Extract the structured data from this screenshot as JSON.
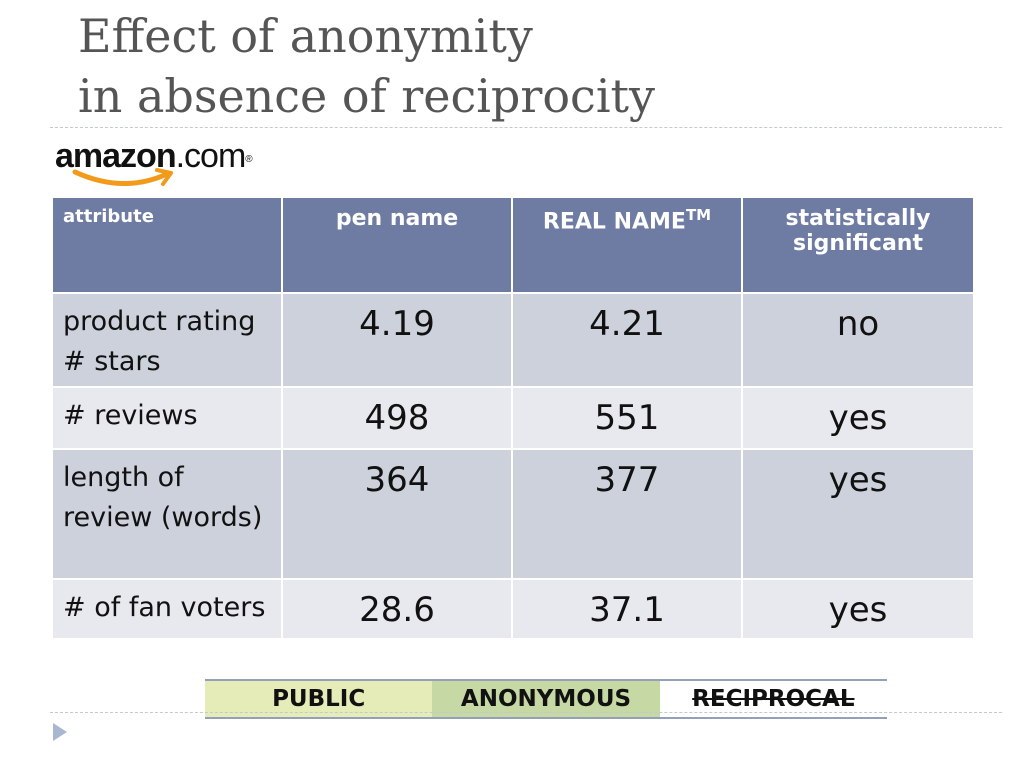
{
  "title": {
    "line1": "Effect of anonymity",
    "line2": "in absence of reciprocity"
  },
  "logo": {
    "brand_bold": "amazon",
    "brand_suffix": ".com",
    "registered": "®",
    "smile_color": "#f29a1a"
  },
  "table": {
    "headers": {
      "attribute": "attribute",
      "pen_name": "pen name",
      "real_name": "REAL NAME",
      "real_name_sup": "TM",
      "significance_line1": "statistically",
      "significance_line2": "significant"
    },
    "rows": [
      {
        "label_line1": "product rating",
        "label_line2": "# stars",
        "pen_name": "4.19",
        "real_name": "4.21",
        "significant": "no"
      },
      {
        "label_line1": "# reviews",
        "label_line2": "",
        "pen_name": "498",
        "real_name": "551",
        "significant": "yes"
      },
      {
        "label_line1": "length of",
        "label_line2": "review (words)",
        "pen_name": "364",
        "real_name": "377",
        "significant": "yes"
      },
      {
        "label_line1": "# of fan voters",
        "label_line2": "",
        "pen_name": "28.6",
        "real_name": "37.1",
        "significant": "yes"
      }
    ]
  },
  "legend": {
    "public": "PUBLIC",
    "anonymous": "ANONYMOUS",
    "reciprocal": "RECIPROCAL"
  },
  "colors": {
    "header_bg": "#6e7ba3",
    "row_dark": "#cdd1dc",
    "row_light": "#e8e9ee",
    "legend_public": "#e6ecb8",
    "legend_anonymous": "#c6d8a4",
    "nav_arrow": "#a9b7d1"
  },
  "icons": {
    "nav": "triangle-right-icon"
  }
}
